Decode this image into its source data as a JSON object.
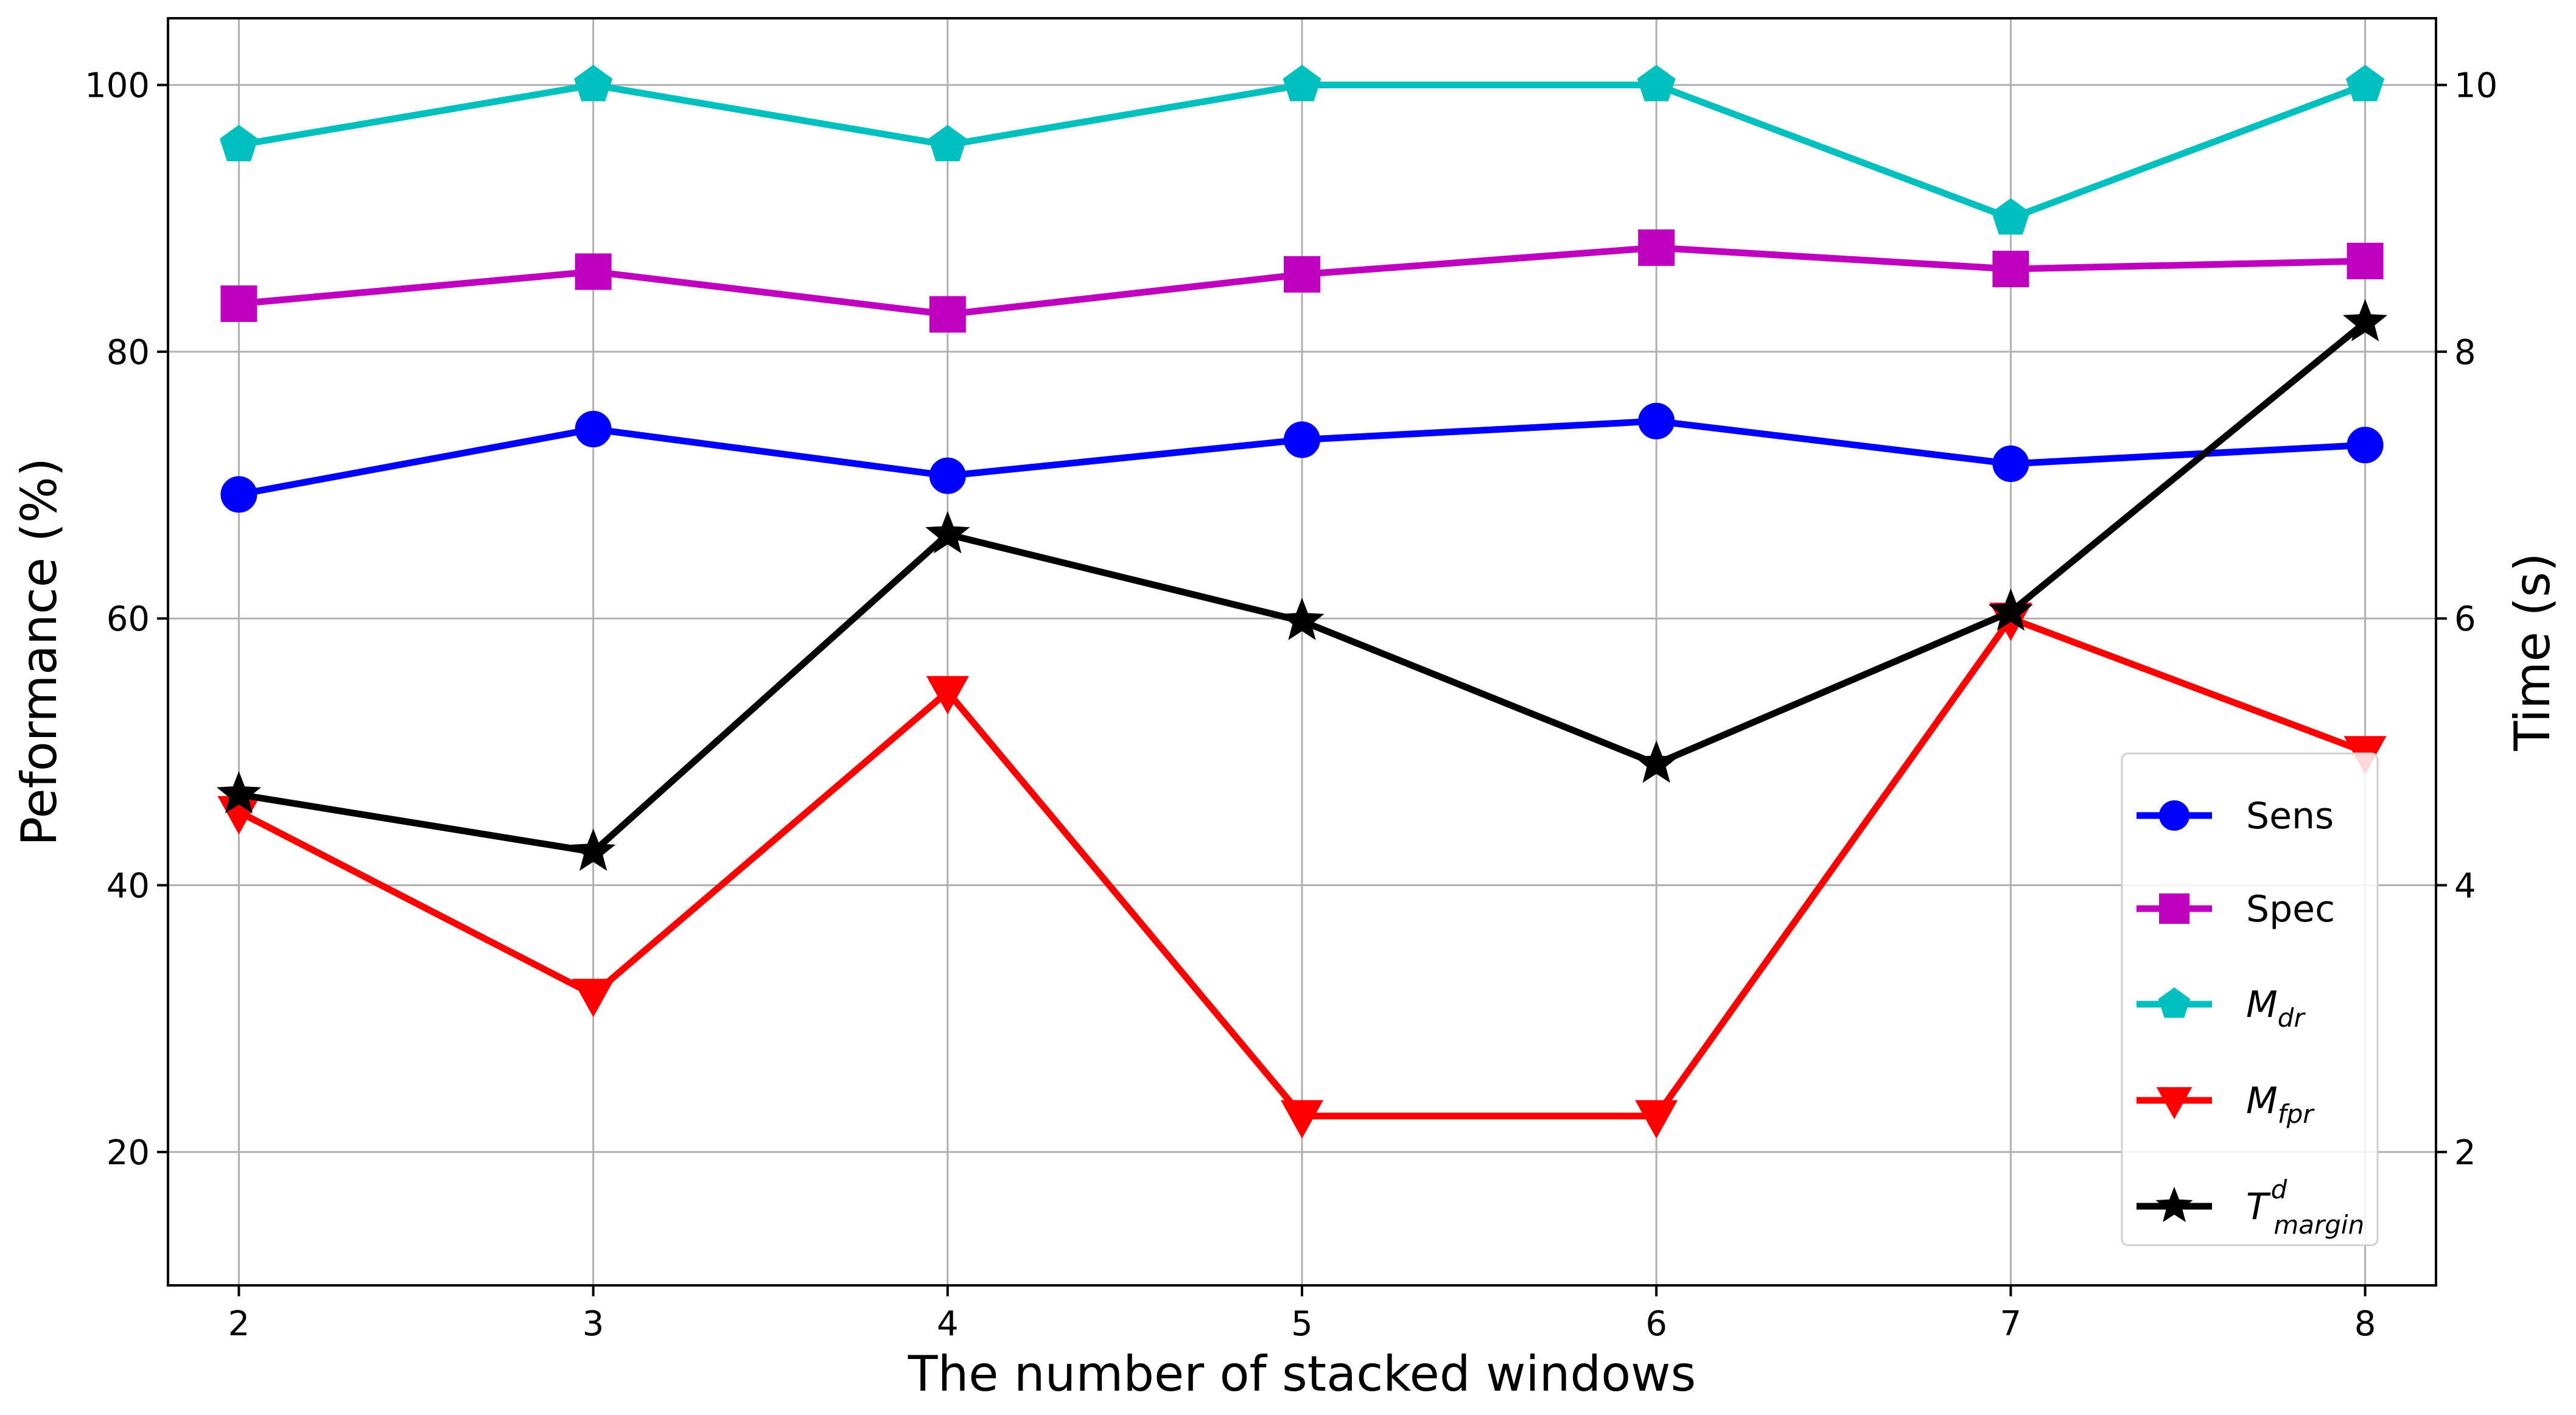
{
  "chart_data": {
    "type": "line",
    "xlabel": "The number of stacked windows",
    "ylabel": "Peformance (%)",
    "y2label": "Time (s)",
    "x": [
      2,
      3,
      4,
      5,
      6,
      7,
      8
    ],
    "xlim": [
      1.8,
      8.2
    ],
    "ylim": [
      10,
      105
    ],
    "y2lim": [
      1,
      10.5
    ],
    "xticks": [
      "2",
      "3",
      "4",
      "5",
      "6",
      "7",
      "8"
    ],
    "yticks": [
      "20",
      "40",
      "60",
      "80",
      "100"
    ],
    "y2ticks": [
      "2",
      "4",
      "6",
      "8",
      "10"
    ],
    "grid": true,
    "legend_position": "lower-right",
    "series": [
      {
        "name": "Sens",
        "name_sub": "",
        "name_sup": "",
        "axis": "left",
        "color": "#0000ff",
        "marker": "circle",
        "values": [
          69.3,
          74.2,
          70.7,
          73.4,
          74.8,
          71.6,
          73.0
        ]
      },
      {
        "name": "Spec",
        "name_sub": "",
        "name_sup": "",
        "axis": "left",
        "color": "#bf00bf",
        "marker": "square",
        "values": [
          83.6,
          86.0,
          82.8,
          85.8,
          87.8,
          86.2,
          86.8
        ]
      },
      {
        "name": "M",
        "name_sub": "dr",
        "name_sup": "",
        "axis": "left",
        "color": "#00bfbf",
        "marker": "pentagon",
        "values": [
          95.5,
          100,
          95.5,
          100,
          100,
          90.0,
          100
        ]
      },
      {
        "name": "M",
        "name_sub": "fpr",
        "name_sup": "",
        "axis": "left",
        "color": "#ff0000",
        "marker": "triangle-down",
        "values": [
          45.5,
          31.8,
          54.5,
          22.7,
          22.7,
          60.0,
          50.0
        ]
      },
      {
        "name": "T",
        "name_sub": "margin",
        "name_sup": "d",
        "axis": "right",
        "color": "#000000",
        "marker": "star",
        "values": [
          4.68,
          4.25,
          6.63,
          5.98,
          4.91,
          6.05,
          8.22
        ]
      }
    ]
  }
}
